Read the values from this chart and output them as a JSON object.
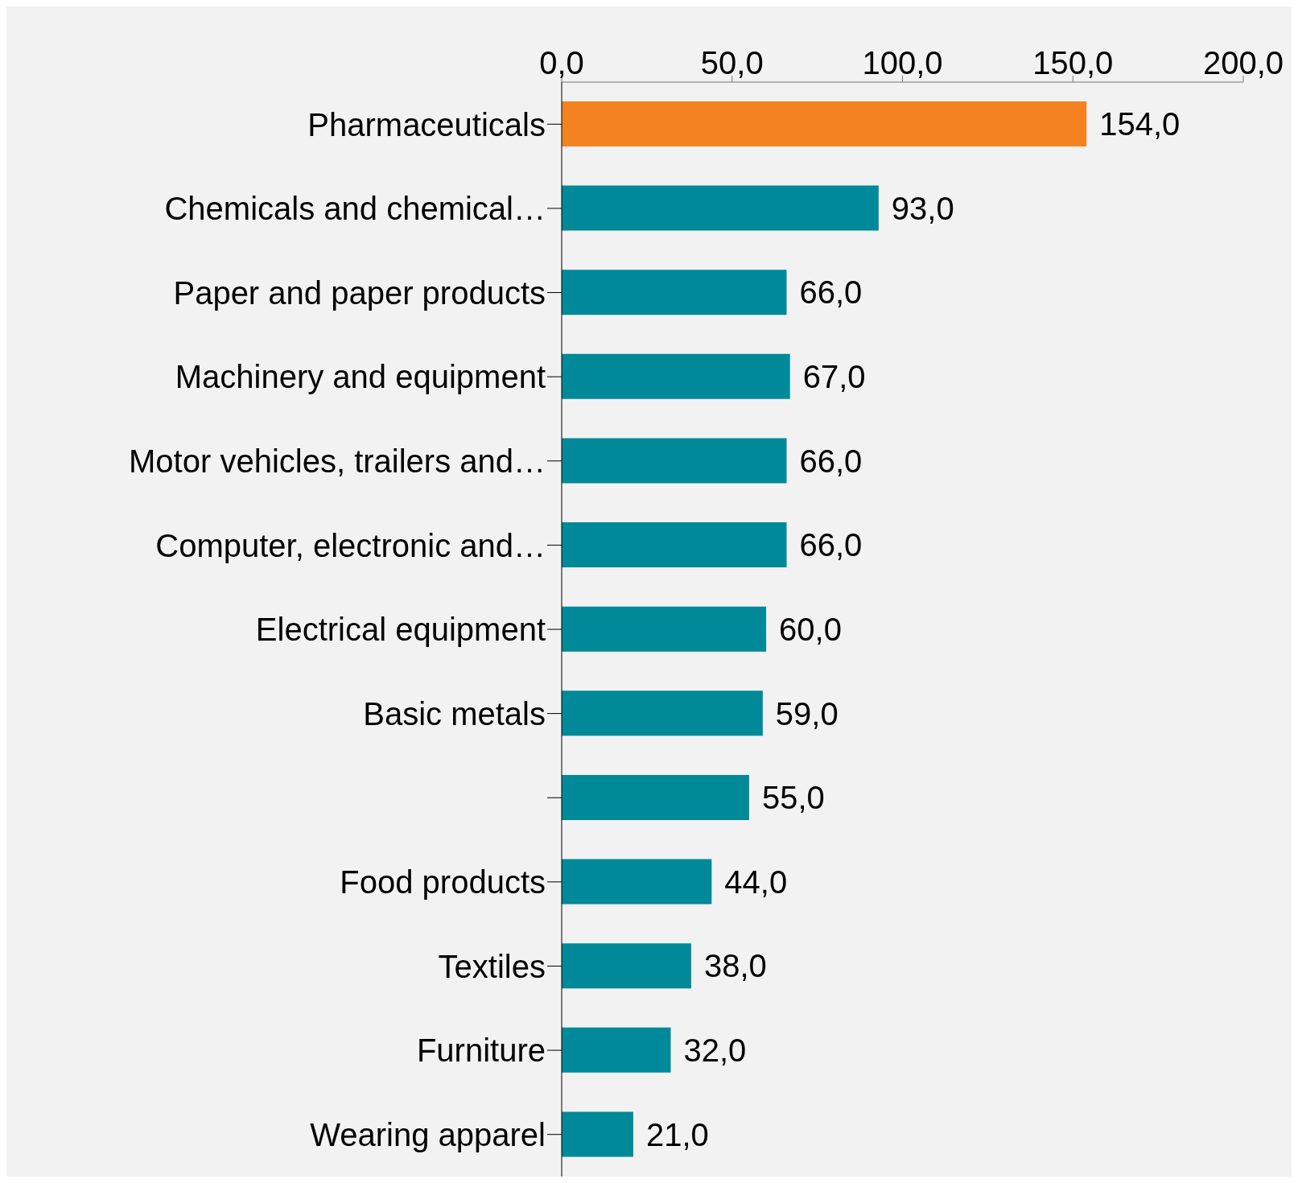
{
  "chart_data": {
    "type": "bar",
    "orientation": "horizontal",
    "categories": [
      "Pharmaceuticals",
      "Chemicals and chemical…",
      "Paper and paper products",
      "Machinery and equipment",
      "Motor vehicles, trailers and…",
      "Computer, electronic and…",
      "Electrical equipment",
      "Basic metals",
      null,
      "Food products",
      "Textiles",
      "Furniture",
      "Wearing apparel"
    ],
    "values": [
      154,
      93,
      66,
      67,
      66,
      66,
      60,
      59,
      55,
      44,
      38,
      32,
      21
    ],
    "colors": [
      "#f58220",
      "#008998",
      "#008998",
      "#008998",
      "#008998",
      "#008998",
      "#008998",
      "#008998",
      "#008998",
      "#008998",
      "#008998",
      "#008998",
      "#008998"
    ],
    "xlim": [
      0,
      200
    ],
    "xticks": [
      {
        "value": 0,
        "label": "0,0"
      },
      {
        "value": 50,
        "label": "50,0"
      },
      {
        "value": 100,
        "label": "100,0"
      },
      {
        "value": 150,
        "label": "150,0"
      },
      {
        "value": 200,
        "label": "200,0"
      }
    ],
    "value_labels": [
      "154,0",
      "93,0",
      "66,0",
      "67,0",
      "66,0",
      "66,0",
      "60,0",
      "59,0",
      "55,0",
      "44,0",
      "38,0",
      "32,0",
      "21,0"
    ],
    "grid": false
  }
}
